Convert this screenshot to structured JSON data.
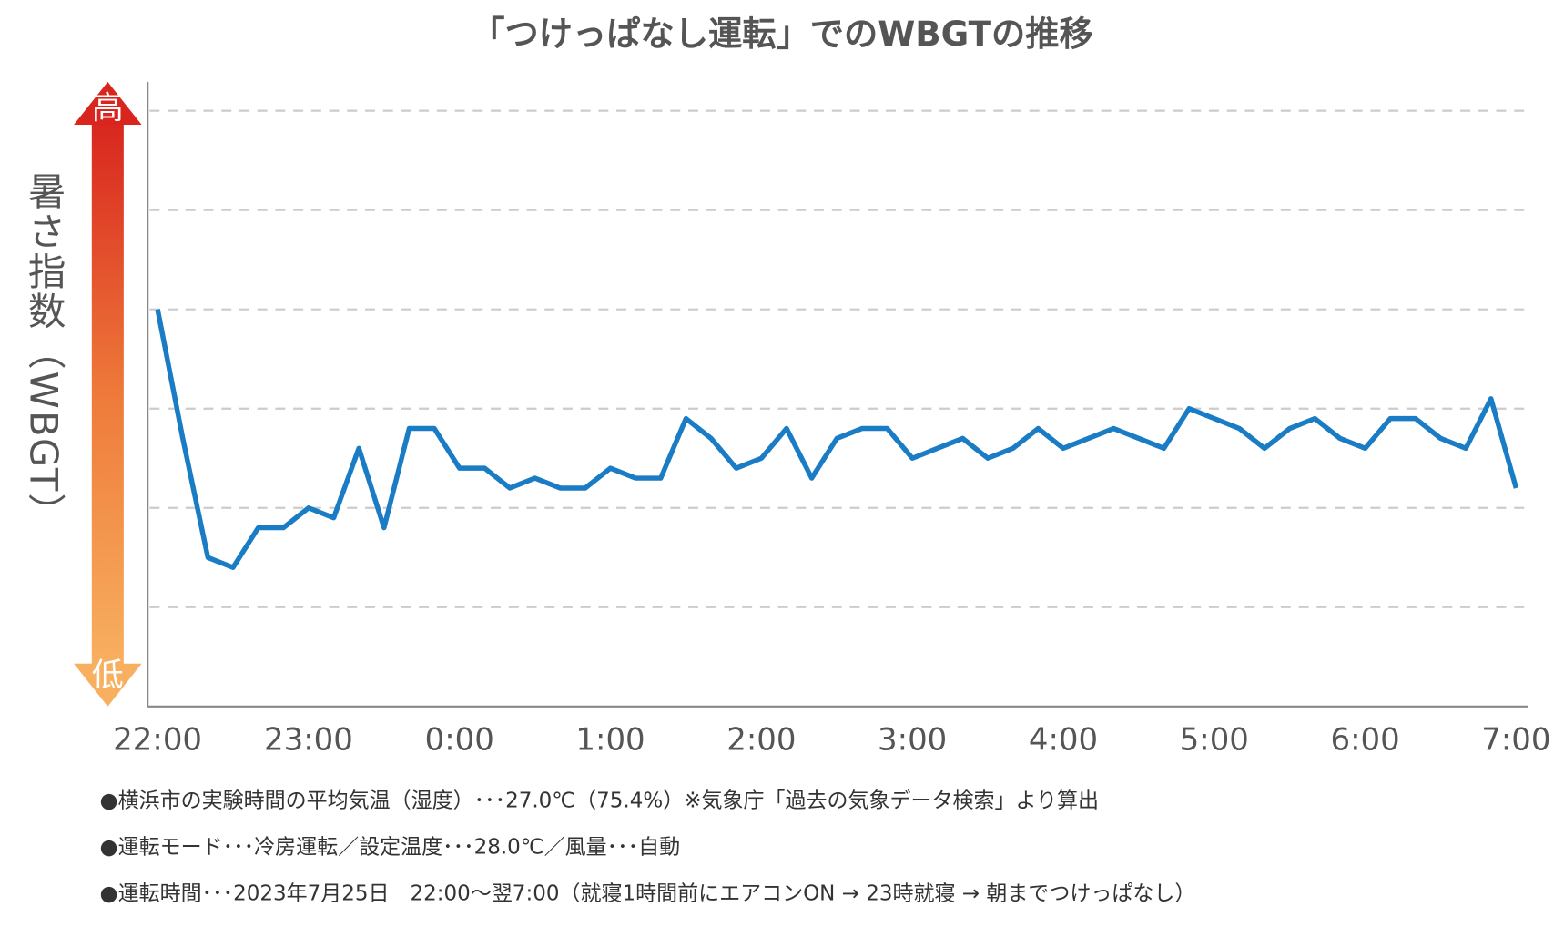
{
  "chart_data": {
    "type": "line",
    "title": "「つけっぱなし運転」でのWBGTの推移",
    "y_label": "暑さ指数（WBGT）",
    "high_label": "高",
    "low_label": "低",
    "categories": [
      "22:00",
      null,
      null,
      null,
      null,
      null,
      "23:00",
      null,
      null,
      null,
      null,
      null,
      "0:00",
      null,
      null,
      null,
      null,
      null,
      "1:00",
      null,
      null,
      null,
      null,
      null,
      "2:00",
      null,
      null,
      null,
      null,
      null,
      "3:00",
      null,
      null,
      null,
      null,
      null,
      "4:00",
      null,
      null,
      null,
      null,
      null,
      "5:00",
      null,
      null,
      null,
      null,
      null,
      "6:00",
      null,
      null,
      null,
      null,
      null,
      "7:00"
    ],
    "series": [
      {
        "name": "WBGT",
        "color": "#1a7cc4",
        "values": [
          4.0,
          2.7,
          1.5,
          1.4,
          1.8,
          1.8,
          2.0,
          1.9,
          2.6,
          1.8,
          2.8,
          2.8,
          2.4,
          2.4,
          2.2,
          2.3,
          2.2,
          2.2,
          2.4,
          2.3,
          2.3,
          2.9,
          2.7,
          2.4,
          2.5,
          2.8,
          2.3,
          2.7,
          2.8,
          2.8,
          2.5,
          2.6,
          2.7,
          2.5,
          2.6,
          2.8,
          2.6,
          2.7,
          2.8,
          2.7,
          2.6,
          3.0,
          2.9,
          2.8,
          2.6,
          2.8,
          2.9,
          2.7,
          2.6,
          2.9,
          2.9,
          2.7,
          2.6,
          3.1,
          2.2
        ]
      }
    ],
    "ylim": [
      0,
      6
    ],
    "yticks": [
      1,
      2,
      3,
      4,
      5,
      6
    ],
    "grid": true,
    "notes": [
      "●横浜市の実験時間の平均気温（湿度）･･･27.0℃（75.4%）※気象庁「過去の気象データ検索」より算出",
      "●運転モード･･･冷房運転／設定温度･･･28.0℃／風量･･･自動",
      "●運転時間･･･2023年7月25日　22:00～翌7:00（就寝1時間前にエアコンON → 23時就寝 → 朝までつけっぱなし）"
    ]
  }
}
